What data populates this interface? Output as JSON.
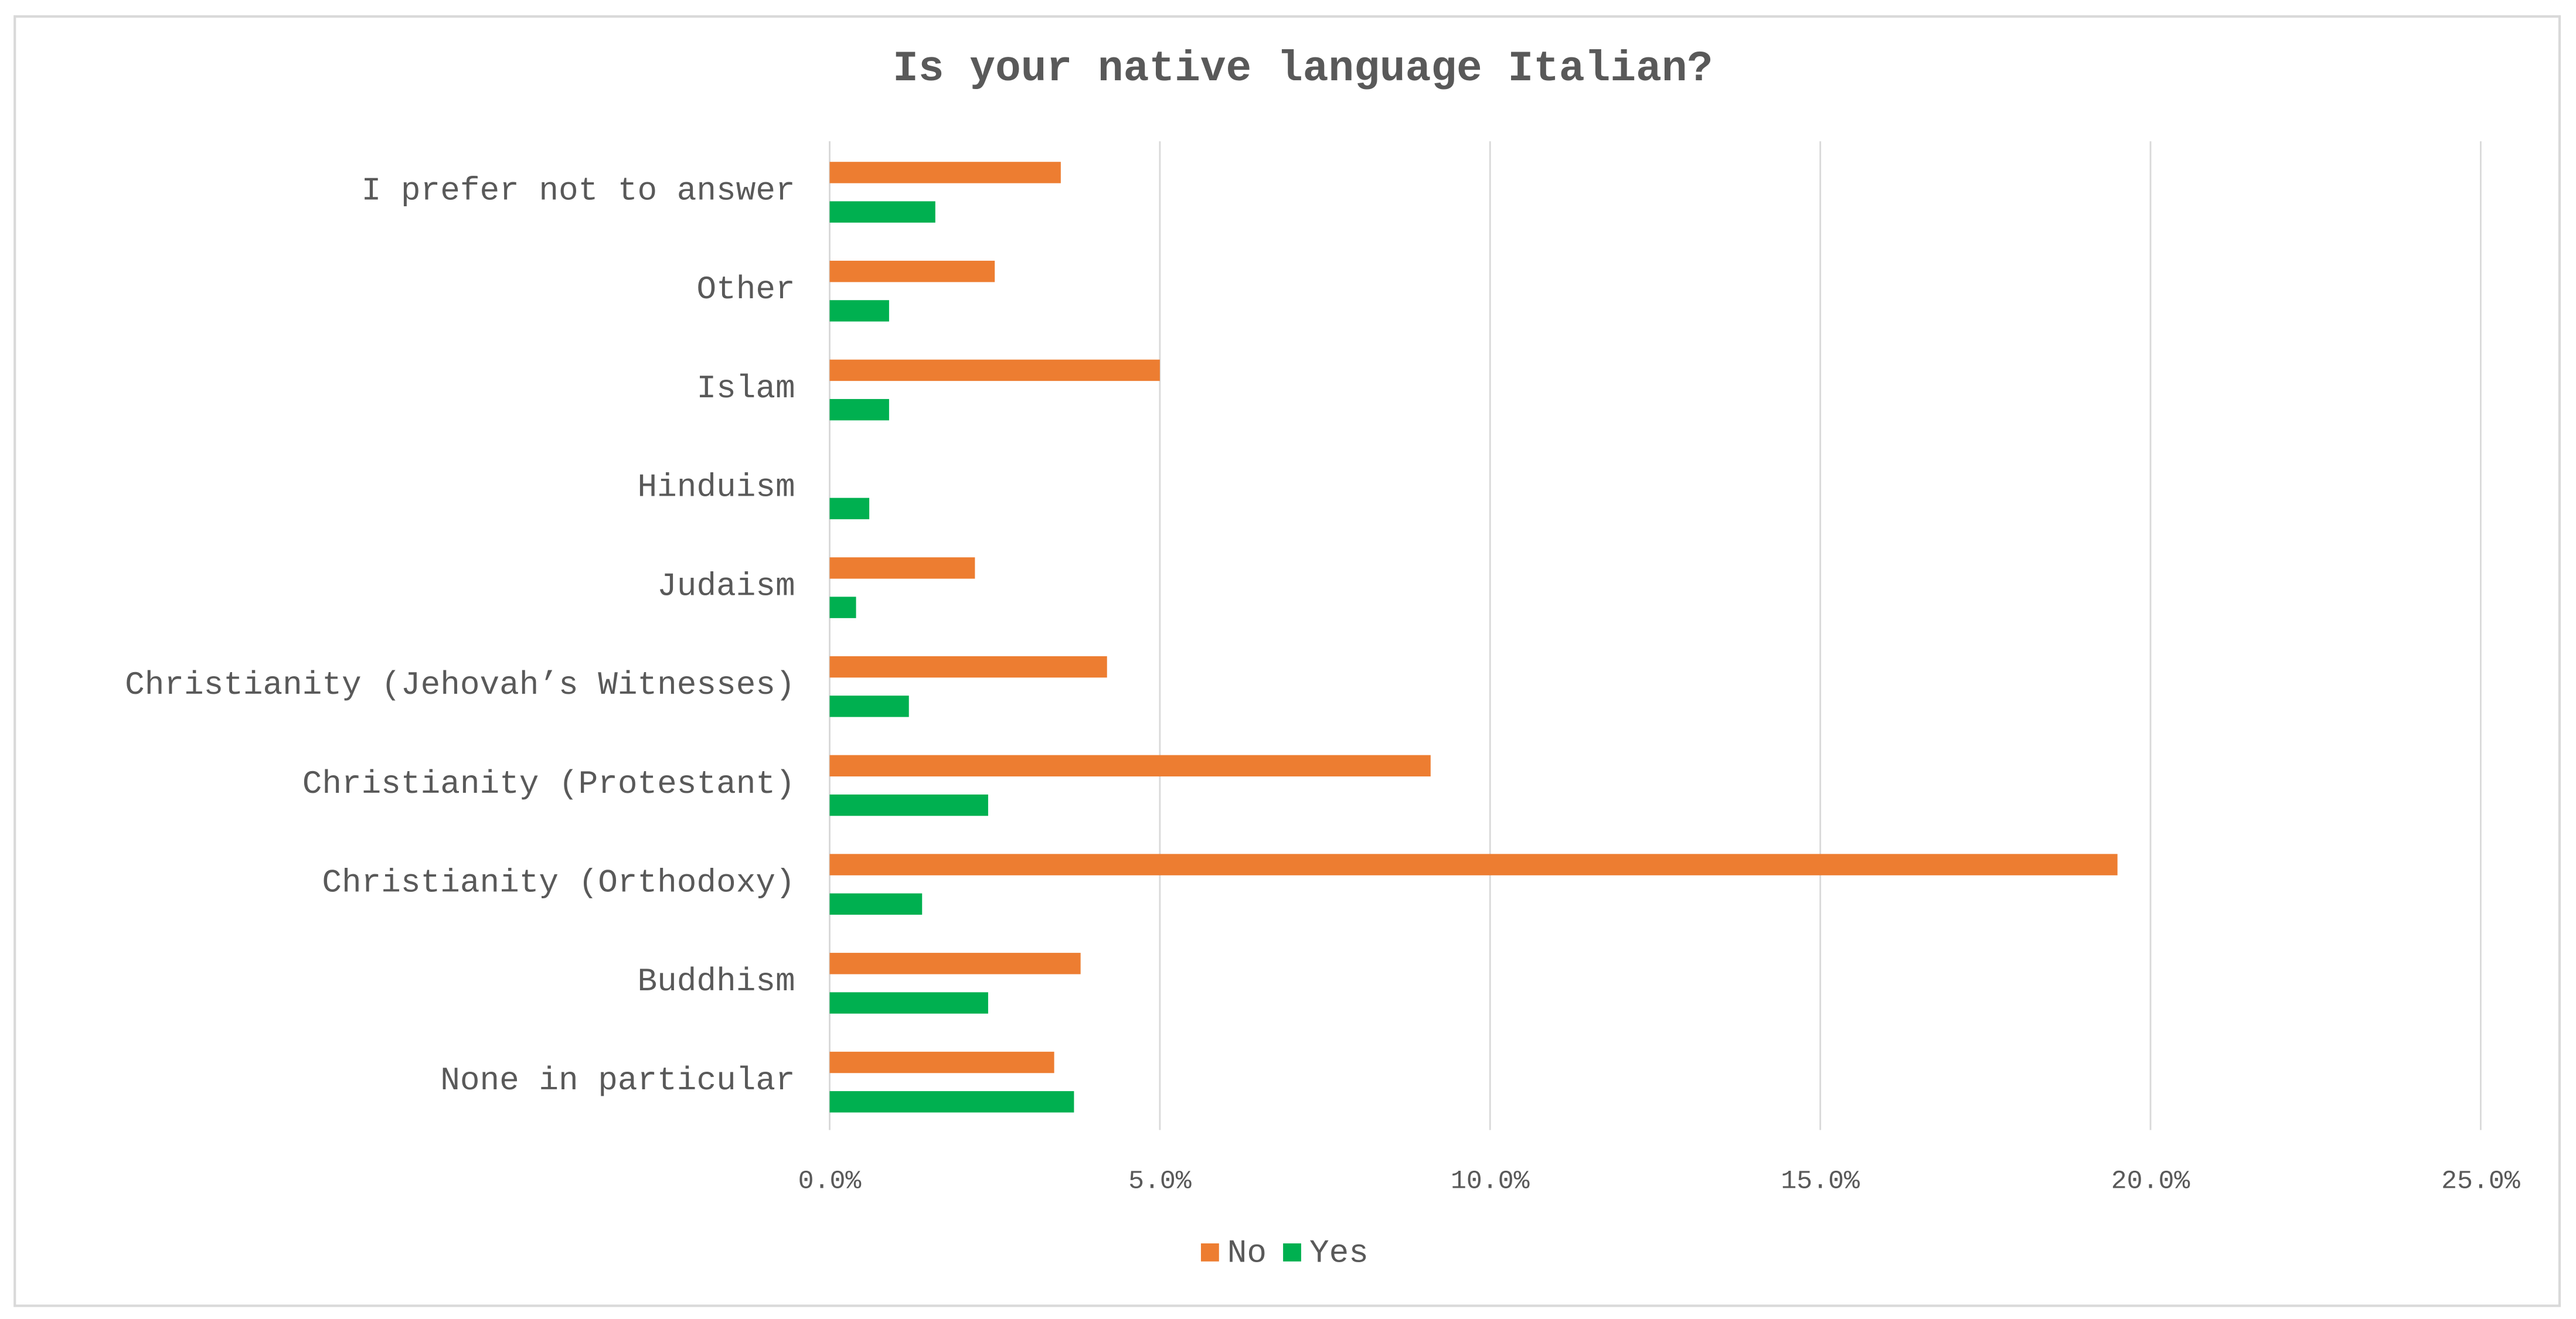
{
  "chart_data": {
    "type": "hbar",
    "title": "Is your native language Italian?",
    "categories": [
      "I prefer not to answer",
      "Other",
      "Islam",
      "Hinduism",
      "Judaism",
      "Christianity (Jehovah’s Witnesses)",
      "Christianity (Protestant)",
      "Christianity (Orthodoxy)",
      "Buddhism",
      "None in particular"
    ],
    "series": [
      {
        "name": "No",
        "color": "#ED7D31",
        "values": [
          3.5,
          2.5,
          5.0,
          0,
          2.2,
          4.2,
          9.1,
          19.5,
          3.8,
          3.4
        ]
      },
      {
        "name": "Yes",
        "color": "#00B050",
        "values": [
          1.6,
          0.9,
          0.9,
          0.6,
          0.4,
          1.2,
          2.4,
          1.4,
          2.4,
          3.7
        ]
      }
    ],
    "xlim": [
      0,
      25
    ],
    "xticks": [
      {
        "value": 0,
        "label": "0.0%"
      },
      {
        "value": 5,
        "label": "5.0%"
      },
      {
        "value": 10,
        "label": "10.0%"
      },
      {
        "value": 15,
        "label": "15.0%"
      },
      {
        "value": 20,
        "label": "20.0%"
      },
      {
        "value": 25,
        "label": "25.0%"
      }
    ],
    "grid": true,
    "legend": "bottom"
  }
}
